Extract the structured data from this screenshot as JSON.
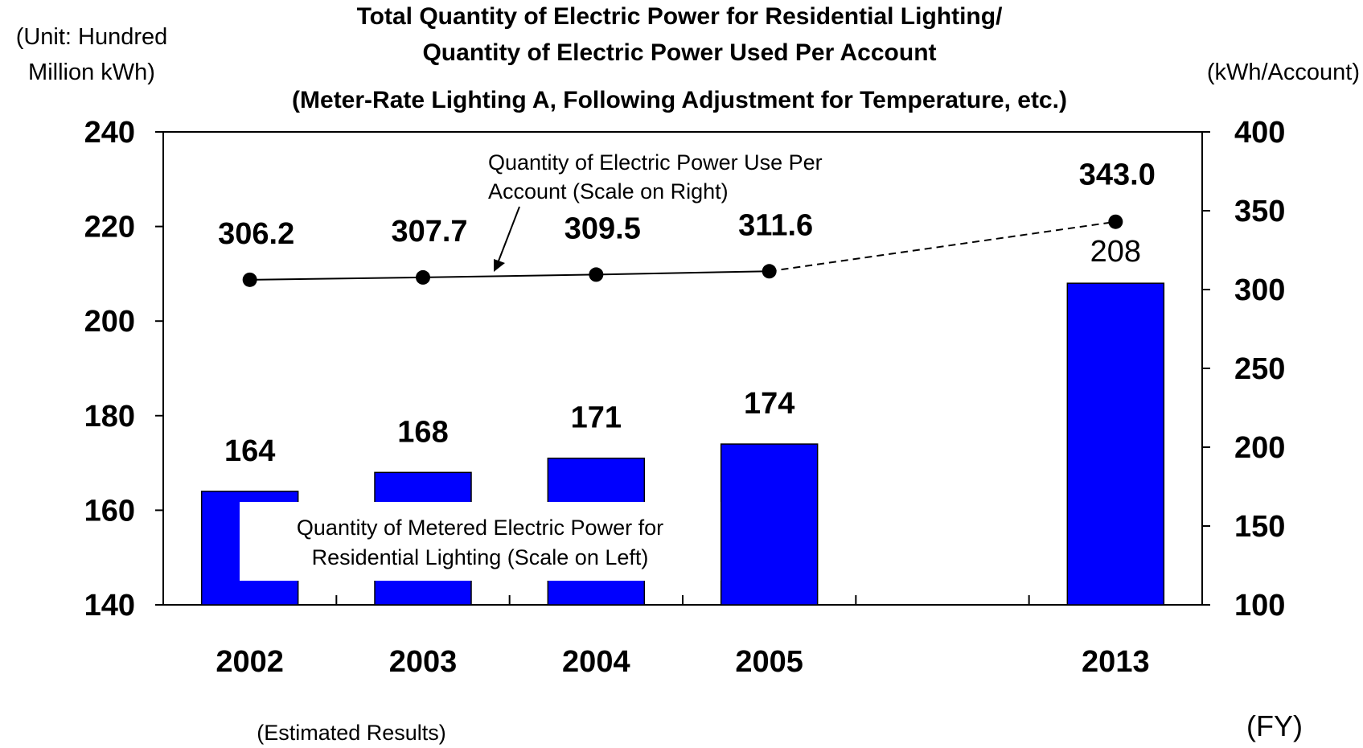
{
  "chart_data": {
    "type": "bar",
    "title_lines": [
      "Total Quantity of Electric Power for Residential Lighting/",
      "Quantity of Electric Power Used Per Account",
      "(Meter-Rate Lighting A, Following Adjustment for Temperature, etc.)"
    ],
    "left_unit_lines": [
      "(Unit: Hundred",
      "Million kWh)"
    ],
    "right_unit": "(kWh/Account)",
    "x_unit": "(FY)",
    "estimated_note": "(Estimated Results)",
    "categories": [
      "2002",
      "2003",
      "2004",
      "2005",
      "2013"
    ],
    "category_slots": [
      0,
      1,
      2,
      3,
      5
    ],
    "slot_count": 6,
    "left_axis": {
      "ylim": [
        140,
        240
      ],
      "ticks": [
        140,
        160,
        180,
        200,
        220,
        240
      ]
    },
    "right_axis": {
      "ylim": [
        100,
        400
      ],
      "ticks": [
        100,
        150,
        200,
        250,
        300,
        350,
        400
      ]
    },
    "series": [
      {
        "type": "bar",
        "axis": "left",
        "values": [
          164,
          168,
          171,
          174,
          208
        ],
        "labels": [
          "164",
          "168",
          "171",
          "174",
          "208"
        ],
        "color": "#0000ff",
        "annotation_lines": [
          "Quantity of Metered Electric Power for",
          "Residential Lighting (Scale on Left)"
        ]
      },
      {
        "type": "line",
        "axis": "right",
        "values": [
          306.2,
          307.7,
          309.5,
          311.6,
          343.0
        ],
        "labels": [
          "306.2",
          "307.7",
          "309.5",
          "311.6",
          "343.0"
        ],
        "color": "#000000",
        "dashed_last_segment": true,
        "annotation_lines": [
          "Quantity of Electric Power Use Per",
          "Account (Scale on Right)"
        ]
      }
    ],
    "grid": false
  }
}
